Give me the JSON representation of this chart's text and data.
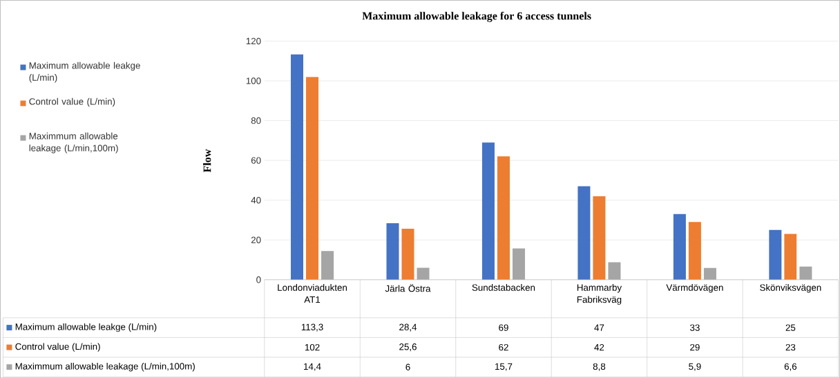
{
  "chart_data": {
    "type": "bar",
    "title": "Maximum allowable leakage for 6 access tunnels",
    "ylabel": "Flow",
    "categories": [
      "Londonviadukten AT1",
      "Järla Östra",
      "Sundstabacken",
      "Hammarby Fabriksväg",
      "Värmdövägen",
      "Skönviksvägen"
    ],
    "series": [
      {
        "name": "Maximum allowable leakge (L/min)",
        "color": "#4472c4",
        "values": [
          113.3,
          28.4,
          69,
          47,
          33,
          25
        ],
        "value_labels": [
          "113,3",
          "28,4",
          "69",
          "47",
          "33",
          "25"
        ]
      },
      {
        "name": "Control value (L/min)",
        "color": "#ed7d31",
        "values": [
          102,
          25.6,
          62,
          42,
          29,
          23
        ],
        "value_labels": [
          "102",
          "25,6",
          "62",
          "42",
          "29",
          "23"
        ]
      },
      {
        "name": "Maximmum allowable leakage (L/min,100m)",
        "color": "#a5a5a5",
        "values": [
          14.4,
          6,
          15.7,
          8.8,
          5.9,
          6.6
        ],
        "value_labels": [
          "14,4",
          "6",
          "15,7",
          "8,8",
          "5,9",
          "6,6"
        ]
      }
    ],
    "ylim": [
      0,
      120
    ],
    "yticks": [
      0,
      20,
      40,
      60,
      80,
      100,
      120
    ],
    "grid": "y",
    "legend": "left"
  }
}
